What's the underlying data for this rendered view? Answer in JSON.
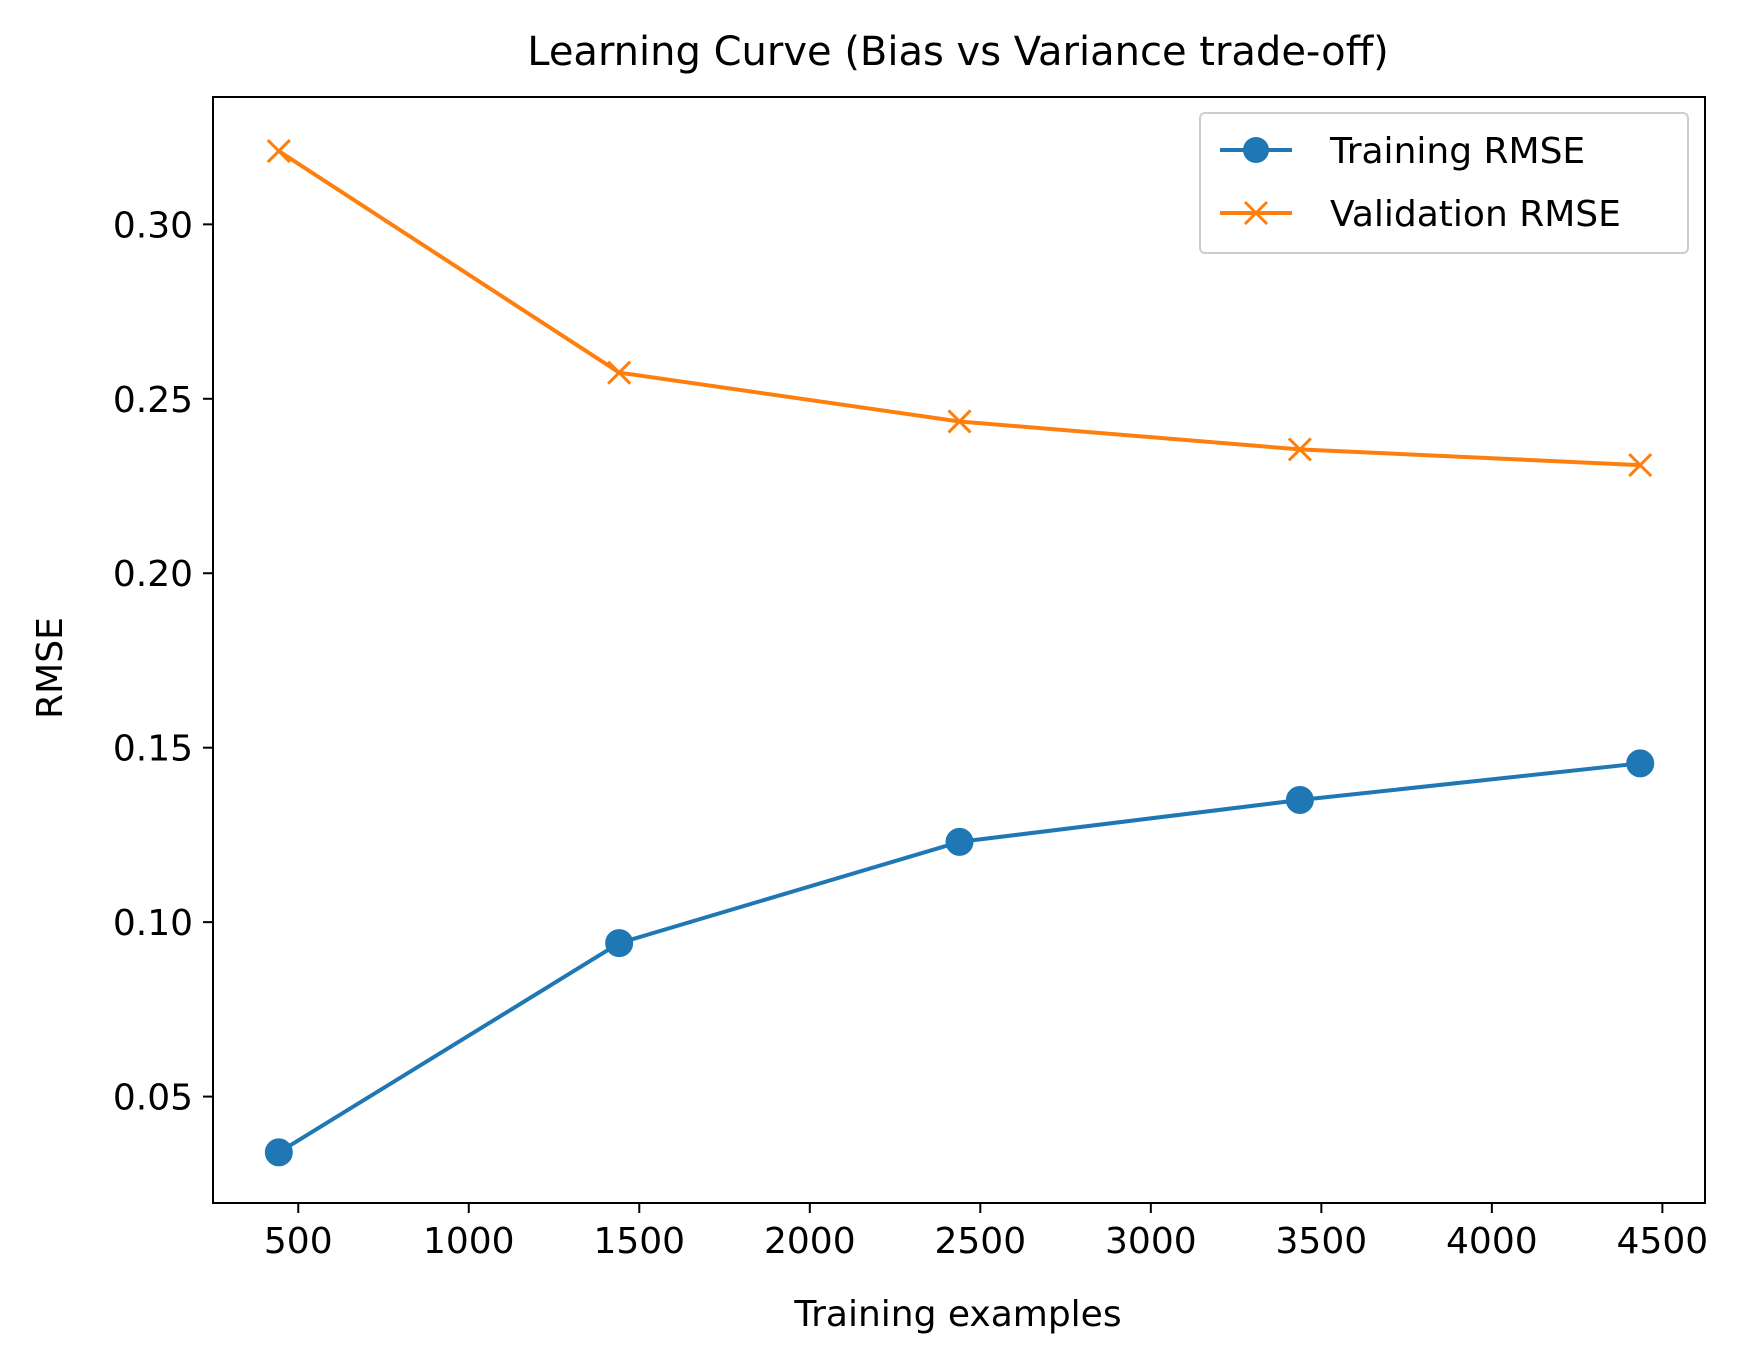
{
  "chart_data": {
    "type": "line",
    "title": "Learning Curve (Bias vs Variance trade-off)",
    "xlabel": "Training examples",
    "ylabel": "RMSE",
    "xlim": [
      250,
      4625
    ],
    "ylim": [
      0.0195,
      0.3365
    ],
    "xticks": [
      500,
      1000,
      1500,
      2000,
      2500,
      3000,
      3500,
      4000,
      4500
    ],
    "xtick_labels": [
      "500",
      "1000",
      "1500",
      "2000",
      "2500",
      "3000",
      "3500",
      "4000",
      "4500"
    ],
    "yticks": [
      0.05,
      0.1,
      0.15,
      0.2,
      0.25,
      0.3
    ],
    "ytick_labels": [
      "0.05",
      "0.10",
      "0.15",
      "0.20",
      "0.25",
      "0.30"
    ],
    "grid": false,
    "legend_position": "top-right",
    "x": [
      443,
      1441,
      2439,
      3437,
      4435
    ],
    "series": [
      {
        "name": "Training RMSE",
        "color": "#1f77b4",
        "marker": "circle",
        "values": [
          0.034,
          0.094,
          0.123,
          0.135,
          0.1455
        ]
      },
      {
        "name": "Validation RMSE",
        "color": "#ff7f0e",
        "marker": "x",
        "values": [
          0.321,
          0.2575,
          0.2435,
          0.2355,
          0.231
        ]
      }
    ]
  }
}
